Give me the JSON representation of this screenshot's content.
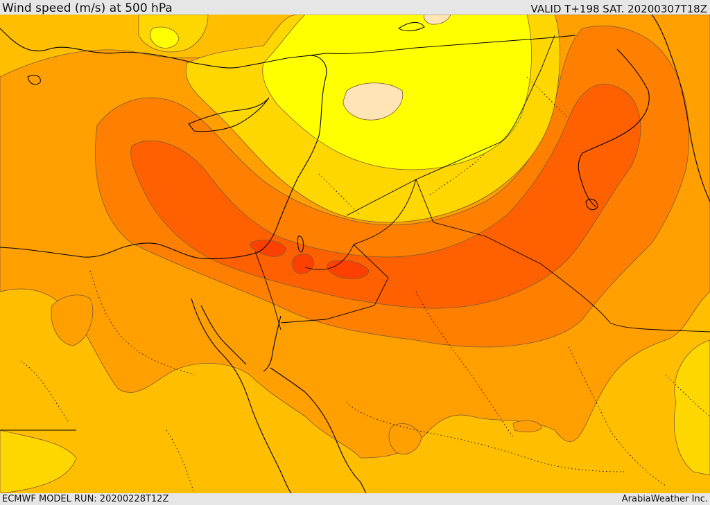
{
  "header": {
    "title": "Wind speed (m/s) at 500 hPa",
    "valid": "VALID T+198 SAT. 20200307T18Z"
  },
  "footer": {
    "model_run": "ECMWF MODEL RUN: 20200228T12Z",
    "credit": "ArabiaWeather Inc."
  },
  "colors": {
    "level_1": "#ffe4b5",
    "level_2": "#ffff00",
    "level_3": "#ffd700",
    "level_4": "#ffbf00",
    "level_5": "#ff9f00",
    "level_6": "#ff8000",
    "level_7": "#ff6000",
    "level_8": "#ff4000",
    "contour": "#7a5a3a",
    "border": "#000000"
  },
  "map_features": [
    "wind-speed-contours",
    "coastlines",
    "country-borders",
    "dotted-provincial-borders"
  ]
}
